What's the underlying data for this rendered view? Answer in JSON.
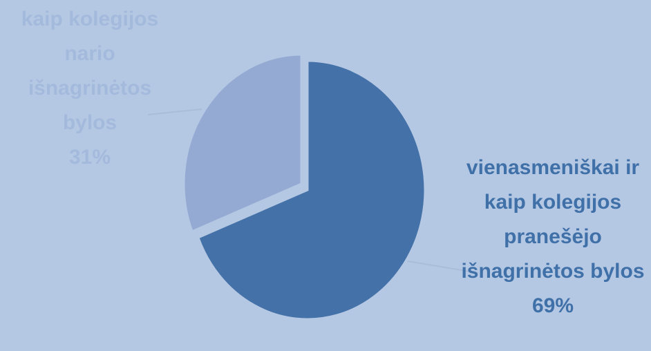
{
  "chart_data": {
    "type": "pie",
    "categories": [
      "vienasmeniškai ir kaip kolegijos pranešėjo išnagrinėtos bylos",
      "kaip kolegijos nario išnagrinėtos bylos"
    ],
    "values": [
      69,
      31
    ],
    "value_labels": [
      "69%",
      "31%"
    ],
    "colors": [
      "#4471a8",
      "#94aad3"
    ]
  }
}
